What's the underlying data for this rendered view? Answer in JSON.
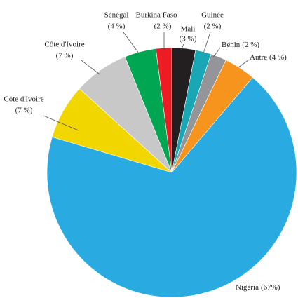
{
  "chart_data": {
    "type": "pie",
    "categories": [
      "Mali",
      "Guinée",
      "Bénin",
      "Autre",
      "Nigéria",
      "Côte d'Ivoire",
      "Côte d'Ivoire",
      "Sénégal",
      "Burkina Faso"
    ],
    "values": [
      3,
      2,
      2,
      4,
      67,
      7,
      7,
      4,
      2
    ],
    "value_labels": [
      "(3 %)",
      "(2 %)",
      "(2 %)",
      "(4 %)",
      "(67%)",
      "(7 %)",
      "(7 %)",
      "(4 %)",
      "(2 %)"
    ],
    "colors": [
      "#231f20",
      "#1aa7b5",
      "#939598",
      "#f7941d",
      "#29abe2",
      "#f2d600",
      "#c8c8c8",
      "#00a651",
      "#ed1c24"
    ]
  }
}
